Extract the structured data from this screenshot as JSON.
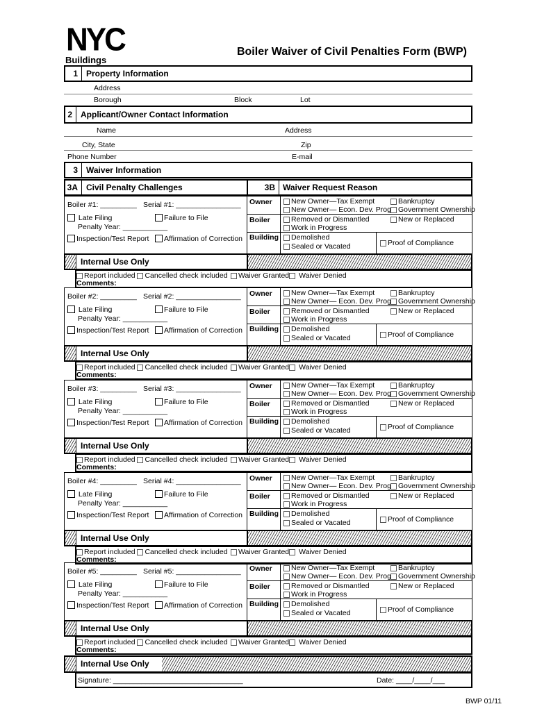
{
  "header": {
    "logo": "NYC",
    "agency": "Buildings",
    "title": "Boiler Waiver of Civil Penalties Form (BWP)"
  },
  "section1": {
    "num": "1",
    "label": "Property Information",
    "address": "Address",
    "borough": "Borough",
    "block": "Block",
    "lot": "Lot"
  },
  "section2": {
    "num": "2",
    "label": "Applicant/Owner Contact Information",
    "name": "Name",
    "address": "Address",
    "city_state": "City, State",
    "zip": "Zip",
    "phone": "Phone Number",
    "email": "E-mail"
  },
  "section3": {
    "num": "3",
    "label": "Waiver Information",
    "a_num": "3A",
    "a_label": "Civil Penalty Challenges",
    "b_num": "3B",
    "b_label": "Waiver Request Reason"
  },
  "common": {
    "late_filing": "Late Filing",
    "failure_to_file": "Failure to File",
    "penalty_year": "Penalty Year: ___________",
    "inspection": "Inspection/Test Report",
    "affirmation": "Affirmation of Correction",
    "owner": "Owner",
    "boiler": "Boiler",
    "building": "Building",
    "new_owner_tax": "New Owner—Tax Exempt",
    "bankruptcy": "Bankruptcy",
    "new_owner_econ": "New Owner— Econ. Dev. Prog.",
    "gov_ownership": "Government Ownership",
    "removed": "Removed or Dismantled",
    "new_replaced": "New or Replaced",
    "work_progress": "Work in Progress",
    "demolished": "Demolished",
    "sealed": "Sealed or Vacated",
    "proof": "Proof of Compliance",
    "internal": "Internal Use Only",
    "report_included": "Report included",
    "cancelled_check": "Cancelled check included",
    "waiver_granted": "Waiver Granted",
    "waiver_denied": "Waiver Denied",
    "comments": "Comments:"
  },
  "boilers": [
    {
      "boiler": "Boiler #1: _________",
      "serial": "Serial #1: ________________"
    },
    {
      "boiler": "Boiler #2: _________",
      "serial": "Serial #2: ________________"
    },
    {
      "boiler": "Boiler #3: _________",
      "serial": "Serial #3: ________________"
    },
    {
      "boiler": "Boiler #4: _________",
      "serial": "Serial #4: ________________"
    },
    {
      "boiler": "Boiler #5: _________",
      "serial": "Serial #5: ________________"
    }
  ],
  "final": {
    "internal": "Internal Use Only",
    "signature": "Signature: ________________________________",
    "date": "Date: ____/____/___"
  },
  "footer": {
    "form_code": "BWP 01/11"
  }
}
